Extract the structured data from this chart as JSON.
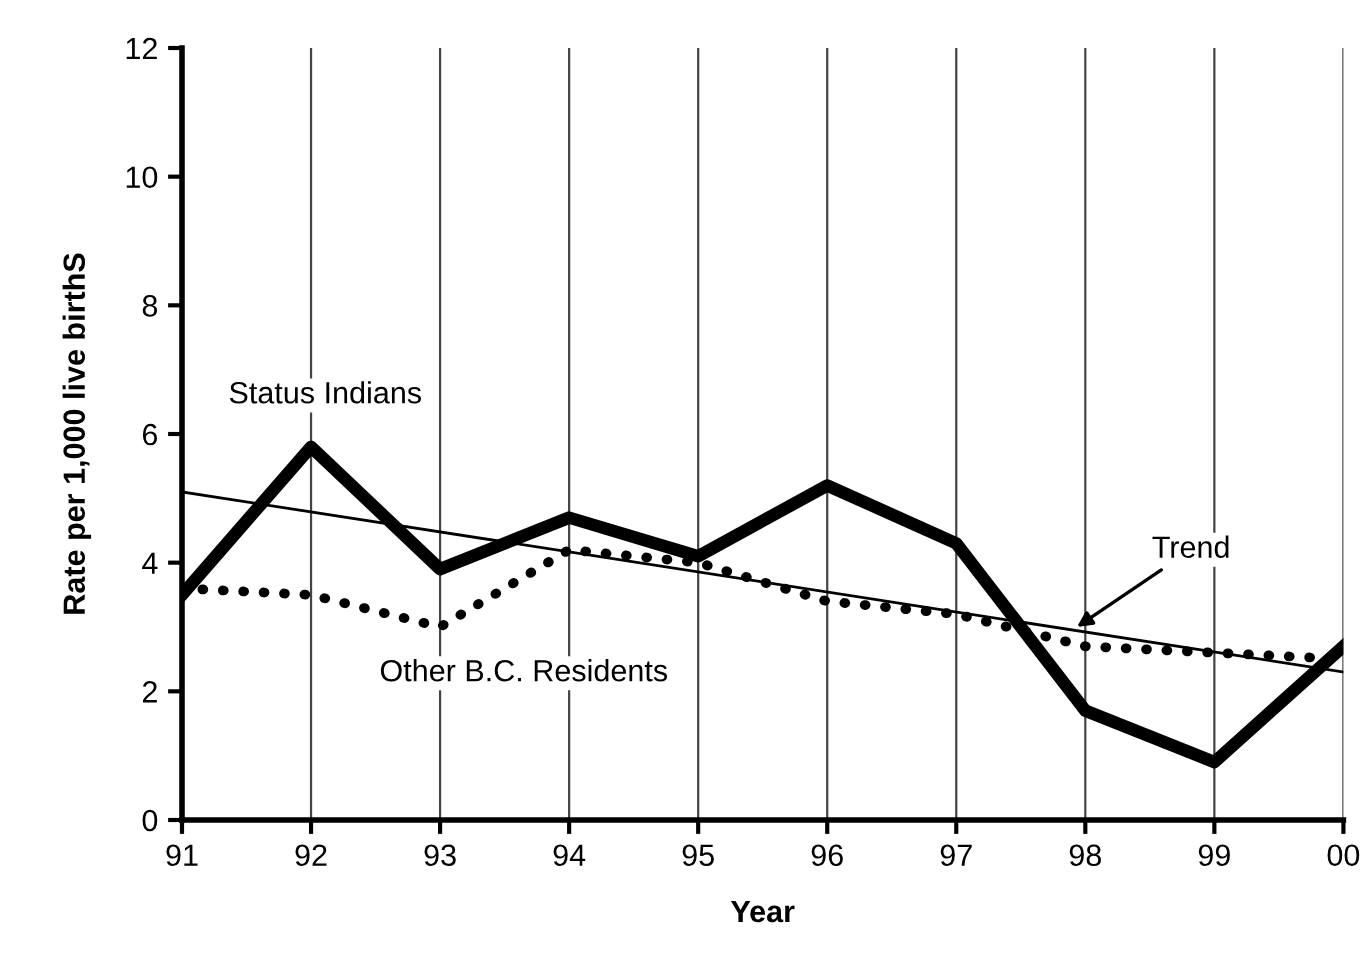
{
  "chart_data": {
    "type": "line",
    "xlabel": "Year",
    "ylabel": "Rate per 1,000 live birthS",
    "categories": [
      "91",
      "92",
      "93",
      "94",
      "95",
      "96",
      "97",
      "98",
      "99",
      "00"
    ],
    "series": [
      {
        "name": "Status Indians",
        "color": "#000000",
        "line_style": "solid",
        "values": [
          3.5,
          5.8,
          3.9,
          4.7,
          4.1,
          5.2,
          4.3,
          1.7,
          0.9,
          2.7
        ]
      },
      {
        "name": "Other B.C. Residents",
        "color": "#000000",
        "line_style": "dotted",
        "values": [
          3.6,
          3.5,
          3.0,
          4.2,
          4.0,
          3.4,
          3.2,
          2.7,
          2.6,
          2.5
        ]
      },
      {
        "name": "Trend",
        "color": "#000000",
        "line_style": "solid",
        "values": [
          5.1,
          null,
          null,
          null,
          null,
          null,
          null,
          null,
          null,
          2.3
        ]
      }
    ],
    "ylim": [
      0,
      12
    ],
    "yticks": [
      0,
      2,
      4,
      6,
      8,
      10,
      12
    ],
    "grid": "x",
    "legend": false,
    "marker": "none"
  }
}
